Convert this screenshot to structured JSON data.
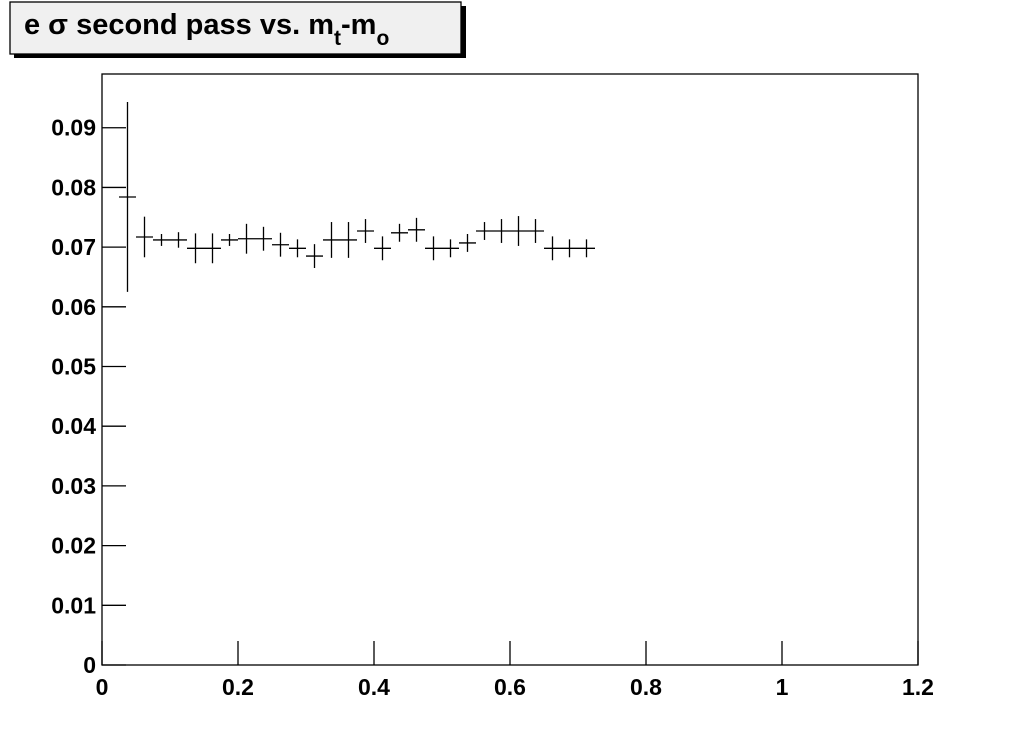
{
  "chart_data": {
    "type": "histogram",
    "title": [
      "e σ second pass vs. m",
      "t",
      "-m",
      "o"
    ],
    "bins": [
      0.025,
      0.05,
      0.075,
      0.1,
      0.125,
      0.15,
      0.175,
      0.2,
      0.225,
      0.25,
      0.275,
      0.3,
      0.325,
      0.35,
      0.375,
      0.4,
      0.425,
      0.45,
      0.475,
      0.5,
      0.525,
      0.55,
      0.575,
      0.6,
      0.625,
      0.65,
      0.675,
      0.7,
      0.725
    ],
    "values": [
      0.0784,
      0.0717,
      0.0712,
      0.0712,
      0.0698,
      0.0698,
      0.0712,
      0.0714,
      0.0714,
      0.0704,
      0.0698,
      0.0685,
      0.0712,
      0.0712,
      0.0727,
      0.0698,
      0.0724,
      0.0729,
      0.0698,
      0.0698,
      0.0707,
      0.0727,
      0.0727,
      0.0727,
      0.0727,
      0.0698,
      0.0698,
      0.0698
    ],
    "errors": [
      0.0159,
      0.0034,
      0.001,
      0.0013,
      0.0025,
      0.0025,
      0.001,
      0.0025,
      0.002,
      0.002,
      0.0015,
      0.002,
      0.003,
      0.003,
      0.002,
      0.002,
      0.0015,
      0.002,
      0.002,
      0.0015,
      0.0015,
      0.0015,
      0.002,
      0.0025,
      0.002,
      0.002,
      0.0015,
      0.0015
    ],
    "color": "#000000",
    "xlim": [
      0,
      1.2
    ],
    "xticks": [
      0,
      0.2,
      0.4,
      0.6,
      0.8,
      1,
      1.2
    ],
    "ylim": [
      0,
      0.099
    ],
    "yticks": [
      0,
      0.01,
      0.02,
      0.03,
      0.04,
      0.05,
      0.06,
      0.07,
      0.08,
      0.09
    ]
  }
}
